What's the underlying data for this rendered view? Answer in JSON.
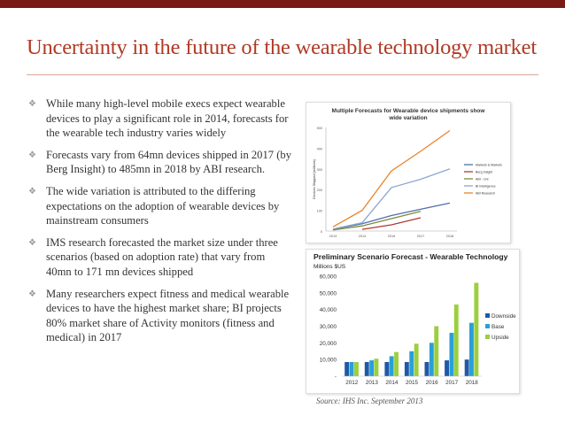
{
  "slide": {
    "title": "Uncertainty in the future of the wearable technology market",
    "bullets": [
      "While many high-level mobile execs expect wearable devices to play a significant role in 2014, forecasts for the wearable tech industry varies widely",
      " Forecasts vary from 64mn devices shipped in 2017 (by Berg Insight) to 485mn in 2018 by ABI research.",
      "The wide variation is attributed to the differing expectations on the adoption of wearable devices by mainstream consumers",
      "IMS research forecasted the market size under three scenarios (based on adoption rate) that vary from 40mn to 171 mn devices shipped",
      "Many researchers expect fitness and medical wearable devices to have the highest market share; BI projects 80% market share of Activity monitors (fitness and medical) in 2017"
    ],
    "bullet_icon": "diamond-bullet-icon",
    "source": "Source: IHS Inc. September 2013"
  },
  "chart_data": [
    {
      "type": "line",
      "title": "Multiple Forecasts for Wearable device shipments show wide variation",
      "ylabel": "Devices Shipped (millions)",
      "xlabel": "",
      "x": [
        "2013",
        "2014",
        "2016",
        "2017",
        "2018"
      ],
      "yticks": [
        "0",
        "100",
        "200",
        "300",
        "400",
        "500"
      ],
      "ylim": [
        0,
        500
      ],
      "legend": "right",
      "series": [
        {
          "name": "Markets & Markets",
          "color": "#4f6fa8",
          "values": [
            8,
            35,
            75,
            105,
            135
          ]
        },
        {
          "name": "Berg Insight",
          "color": "#b03a34",
          "values": [
            null,
            8,
            30,
            64,
            null
          ]
        },
        {
          "name": "ABI - Uni",
          "color": "#7a8a3c",
          "values": [
            5,
            25,
            60,
            95,
            null
          ]
        },
        {
          "name": "BI Intelligence",
          "color": "#8da7cf",
          "values": [
            10,
            40,
            210,
            250,
            300
          ]
        },
        {
          "name": "ABI Research",
          "color": "#e8842c",
          "values": [
            20,
            100,
            290,
            385,
            485
          ]
        }
      ]
    },
    {
      "type": "bar",
      "title": "Preliminary Scenario Forecast - Wearable Technology",
      "subtitle": "Millions $US",
      "categories": [
        "2012",
        "2013",
        "2014",
        "2015",
        "2016",
        "2017",
        "2018"
      ],
      "yticks": [
        "-",
        "10,000",
        "20,000",
        "30,000",
        "40,000",
        "50,000",
        "60,000"
      ],
      "ylim": [
        0,
        60000
      ],
      "legend": "right",
      "series": [
        {
          "name": "Downside",
          "color": "#1f5aa6",
          "values": [
            8500,
            8500,
            8500,
            8500,
            8500,
            9500,
            10000
          ]
        },
        {
          "name": "Base",
          "color": "#2a9fd8",
          "values": [
            8500,
            9500,
            12000,
            15000,
            20000,
            26000,
            32000
          ]
        },
        {
          "name": "Upside",
          "color": "#9ccf3e",
          "values": [
            8500,
            10500,
            14500,
            19500,
            30000,
            43000,
            56000
          ]
        }
      ]
    }
  ]
}
